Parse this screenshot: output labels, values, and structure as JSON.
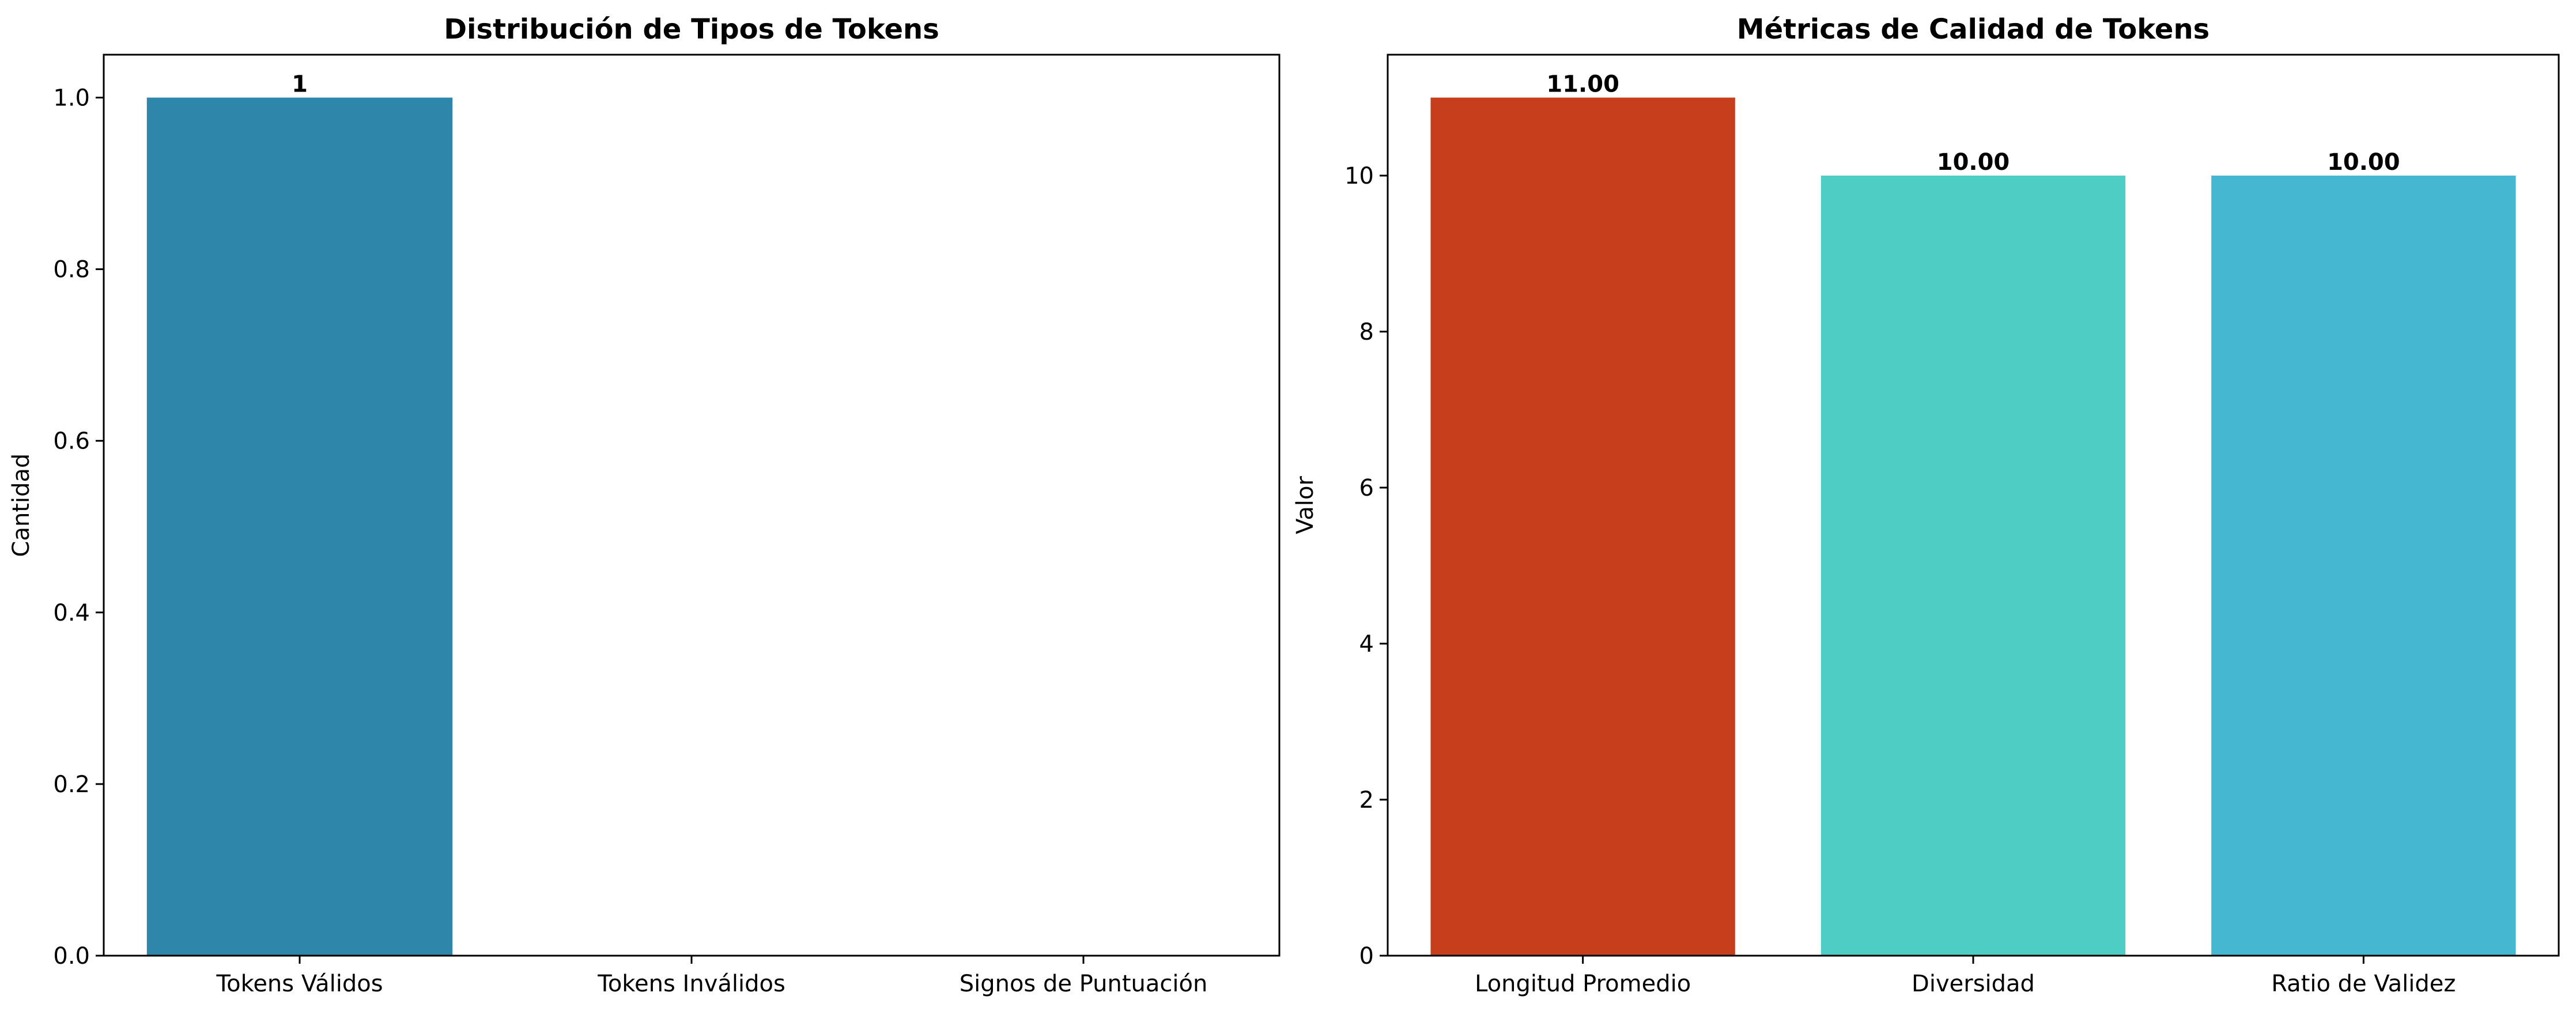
{
  "chart_data": [
    {
      "type": "bar",
      "title": "Distribución de Tipos de Tokens",
      "xlabel": "",
      "ylabel": "Cantidad",
      "categories": [
        "Tokens Válidos",
        "Tokens Inválidos",
        "Signos de Puntuación"
      ],
      "values": [
        1,
        0,
        0
      ],
      "data_labels": [
        "1",
        "",
        ""
      ],
      "colors": [
        "#2e86ab",
        "#a23b72",
        "#f18f01"
      ],
      "ylim": [
        0,
        1.05
      ],
      "yticks": [
        0.0,
        0.2,
        0.4,
        0.6,
        0.8,
        1.0
      ],
      "ytick_labels": [
        "0.0",
        "0.2",
        "0.4",
        "0.6",
        "0.8",
        "1.0"
      ],
      "grid": false
    },
    {
      "type": "bar",
      "title": "Métricas de Calidad de Tokens",
      "xlabel": "",
      "ylabel": "Valor",
      "categories": [
        "Longitud Promedio",
        "Diversidad",
        "Ratio de Validez"
      ],
      "values": [
        11.0,
        10.0,
        10.0
      ],
      "data_labels": [
        "11.00",
        "10.00",
        "10.00"
      ],
      "colors": [
        "#c73e1d",
        "#4ecdc4",
        "#45b7d1"
      ],
      "ylim": [
        0,
        11.55
      ],
      "yticks": [
        0,
        2,
        4,
        6,
        8,
        10
      ],
      "ytick_labels": [
        "0",
        "2",
        "4",
        "6",
        "8",
        "10"
      ],
      "grid": false
    }
  ]
}
